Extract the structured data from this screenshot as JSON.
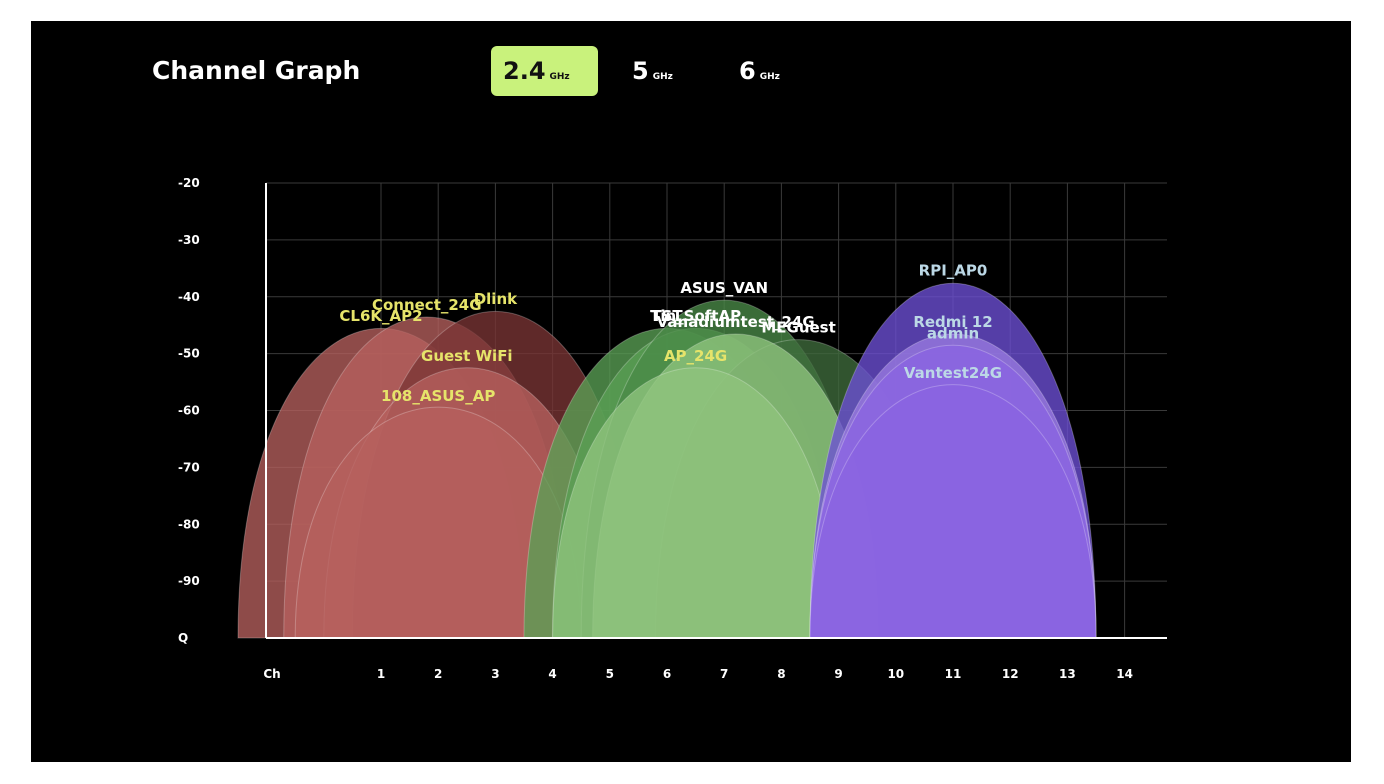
{
  "header": {
    "title": "Channel Graph",
    "bands": [
      {
        "value": "2.4",
        "unit": "GHz",
        "active": true
      },
      {
        "value": "5",
        "unit": "GHz",
        "active": false
      },
      {
        "value": "6",
        "unit": "GHz",
        "active": false
      }
    ],
    "active_color": "#c9f27c"
  },
  "chart_data": {
    "type": "area",
    "xlabel": "Ch",
    "ylabel": "",
    "x_ticks": [
      "1",
      "2",
      "3",
      "4",
      "5",
      "6",
      "7",
      "8",
      "9",
      "10",
      "11",
      "12",
      "13",
      "14"
    ],
    "y_ticks": [
      "-20",
      "-30",
      "-40",
      "-50",
      "-60",
      "-70",
      "-80",
      "-90",
      "Q"
    ],
    "ylim": [
      -100,
      -20
    ],
    "xlim": [
      0,
      14.3
    ],
    "grid": true,
    "series": [
      {
        "name": "CL6K_AP2",
        "channel": 1,
        "signal": -45,
        "color": "#b6605e",
        "label_color": "#e6e46a"
      },
      {
        "name": "Connect_24G",
        "channel": 1.8,
        "signal": -43,
        "color": "#b6605e",
        "label_color": "#e6e46a"
      },
      {
        "name": "Dlink",
        "channel": 3,
        "signal": -42,
        "color": "#7a3535",
        "label_color": "#e6e46a"
      },
      {
        "name": "Guest WiFi",
        "channel": 2.5,
        "signal": -52,
        "color": "#b6605e",
        "label_color": "#e6e46a"
      },
      {
        "name": "108_ASUS_AP",
        "channel": 2,
        "signal": -59,
        "color": "#b6605e",
        "label_color": "#e6e46a"
      },
      {
        "name": "TST",
        "channel": 6,
        "signal": -45,
        "color": "#5aa055",
        "label_color": "#ffffff"
      },
      {
        "name": "Tin_SoftAP",
        "channel": 6.5,
        "signal": -45,
        "color": "#5aa055",
        "label_color": "#ffffff"
      },
      {
        "name": "ASUS_VAN",
        "channel": 7,
        "signal": -40,
        "color": "#4a8a48",
        "label_color": "#ffffff"
      },
      {
        "name": "MEGuest",
        "channel": 8.3,
        "signal": -47,
        "color": "#3f6b3c",
        "label_color": "#ffffff"
      },
      {
        "name": "Vanadiumtest_24G",
        "channel": 7.2,
        "signal": -46,
        "color": "#8fc47e",
        "label_color": "#ffffff"
      },
      {
        "name": "AP_24G",
        "channel": 6.5,
        "signal": -52,
        "color": "#8fc47e",
        "label_color": "#e6e46a"
      },
      {
        "name": "RPI_AP0",
        "channel": 11,
        "signal": -37,
        "color": "#6d4fd6",
        "label_color": "#bcd8e6"
      },
      {
        "name": "Redmi 12",
        "channel": 11,
        "signal": -46,
        "color": "#9a7be0",
        "label_color": "#bcd8e6"
      },
      {
        "name": "admin",
        "channel": 11,
        "signal": -48,
        "color": "#8a64e2",
        "label_color": "#bcd8e6"
      },
      {
        "name": "Vantest24G",
        "channel": 11,
        "signal": -55,
        "color": "#8a64e2",
        "label_color": "#bcd8e6"
      }
    ]
  }
}
